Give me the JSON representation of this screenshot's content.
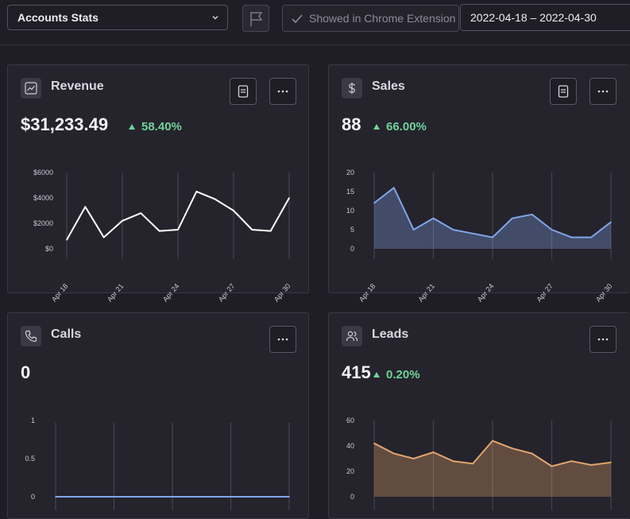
{
  "header": {
    "account_select": "Accounts Stats",
    "chrome_toggle_label": "Showed in Chrome Extension",
    "date_range": "2022-04-18 – 2022-04-30"
  },
  "cards": {
    "revenue": {
      "title": "Revenue",
      "value": "$31,233.49",
      "change": "58.40%"
    },
    "sales": {
      "title": "Sales",
      "value": "88",
      "change": "66.00%"
    },
    "calls": {
      "title": "Calls",
      "value": "0"
    },
    "leads": {
      "title": "Leads",
      "value": "415",
      "change": "0.20%"
    }
  },
  "colors": {
    "background": "#1f1d25",
    "card": "#25232c",
    "positive": "#6fd39a",
    "revenue_line": "#ffffff",
    "sales_line": "#7fa6ea",
    "calls_line": "#7fa6ea",
    "leads_line": "#e2a56c"
  },
  "chart_data": [
    {
      "type": "line",
      "title": "Revenue",
      "x_tick_labels": [
        "Apr 18",
        "Apr 21",
        "Apr 24",
        "Apr 27",
        "Apr 30"
      ],
      "y_tick_labels": [
        "$0",
        "$2000",
        "$4000",
        "$6000"
      ],
      "ylim": [
        0,
        6000
      ],
      "series": [
        {
          "values": [
            700,
            3300,
            900,
            2200,
            2800,
            1400,
            1500,
            4500,
            3900,
            3000,
            1500,
            1400,
            4000
          ]
        }
      ]
    },
    {
      "type": "area",
      "title": "Sales",
      "x_tick_labels": [
        "Apr 18",
        "Apr 21",
        "Apr 24",
        "Apr 27",
        "Apr 30"
      ],
      "y_tick_labels": [
        "0",
        "5",
        "10",
        "15",
        "20"
      ],
      "ylim": [
        0,
        20
      ],
      "series": [
        {
          "values": [
            12,
            16,
            5,
            8,
            5,
            4,
            3,
            8,
            9,
            5,
            3,
            3,
            7
          ]
        }
      ]
    },
    {
      "type": "line",
      "title": "Calls",
      "y_tick_labels": [
        "0",
        "0.5",
        "1"
      ],
      "ylim": [
        0,
        1
      ],
      "series": [
        {
          "values": [
            0,
            0,
            0,
            0,
            0,
            0,
            0,
            0,
            0,
            0,
            0,
            0,
            0
          ]
        }
      ]
    },
    {
      "type": "area",
      "title": "Leads",
      "y_tick_labels": [
        "0",
        "20",
        "40",
        "60"
      ],
      "ylim": [
        0,
        60
      ],
      "series": [
        {
          "values": [
            42,
            34,
            30,
            35,
            28,
            26,
            44,
            38,
            34,
            24,
            28,
            25,
            27
          ]
        }
      ]
    }
  ]
}
